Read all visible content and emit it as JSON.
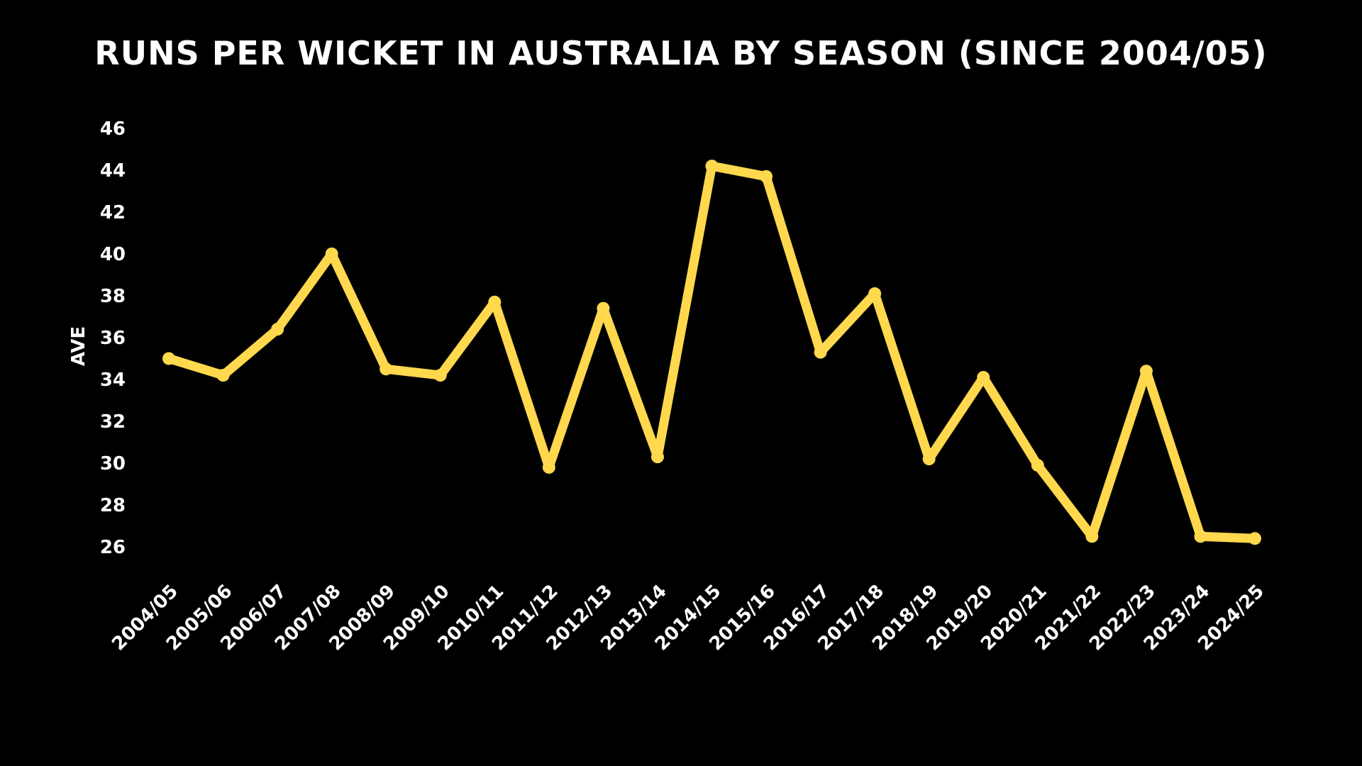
{
  "chart_data": {
    "type": "line",
    "title": "Runs per wicket in Australia by Season (Since 2004/05)",
    "xlabel": "",
    "ylabel": "AVE",
    "ylim": [
      26,
      46
    ],
    "yticks": [
      46,
      44,
      42,
      40,
      38,
      36,
      34,
      32,
      30,
      28,
      26
    ],
    "grid": false,
    "legend": "none",
    "line_color": "#FFD84D",
    "background": "#000000",
    "categories": [
      "2004/05",
      "2005/06",
      "2006/07",
      "2007/08",
      "2008/09",
      "2009/10",
      "2010/11",
      "2011/12",
      "2012/13",
      "2013/14",
      "2014/15",
      "2015/16",
      "2016/17",
      "2017/18",
      "2018/19",
      "2019/20",
      "2020/21",
      "2021/22",
      "2022/23",
      "2023/24",
      "2024/25"
    ],
    "series": [
      {
        "values": [
          35.0,
          34.2,
          36.4,
          40.0,
          34.5,
          34.2,
          37.7,
          29.8,
          37.4,
          30.3,
          44.2,
          43.7,
          35.3,
          38.1,
          30.2,
          34.1,
          29.9,
          26.5,
          34.4,
          26.5,
          26.4
        ]
      }
    ]
  }
}
